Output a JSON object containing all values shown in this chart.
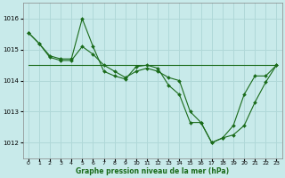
{
  "title": "Graphe pression niveau de la mer (hPa)",
  "background_color": "#c8eaea",
  "grid_color": "#b0d8d8",
  "line_color": "#1a6b1a",
  "marker_color": "#1a6b1a",
  "xlim": [
    -0.5,
    23.5
  ],
  "ylim": [
    1011.5,
    1016.5
  ],
  "yticks": [
    1012,
    1013,
    1014,
    1015,
    1016
  ],
  "xticks": [
    0,
    1,
    2,
    3,
    4,
    5,
    6,
    7,
    8,
    9,
    10,
    11,
    12,
    13,
    14,
    15,
    16,
    17,
    18,
    19,
    20,
    21,
    22,
    23
  ],
  "series1_x": [
    0,
    1,
    2,
    3,
    4,
    5,
    6,
    7,
    8,
    9,
    10,
    11,
    12,
    13,
    14,
    15,
    16,
    17,
    18,
    19,
    20,
    21,
    22,
    23
  ],
  "series1_y": [
    1015.55,
    1015.2,
    1014.8,
    1014.7,
    1014.7,
    1016.0,
    1015.1,
    1014.3,
    1014.15,
    1014.05,
    1014.45,
    1014.5,
    1014.4,
    1013.85,
    1013.55,
    1012.65,
    1012.65,
    1012.0,
    1012.15,
    1012.55,
    1013.55,
    1014.15,
    1014.15,
    1014.5
  ],
  "series2_x": [
    0,
    1,
    2,
    3,
    4,
    5,
    6,
    7,
    8,
    9,
    10,
    11,
    12,
    13,
    14,
    15,
    16,
    17,
    18,
    19,
    20,
    21,
    22,
    23
  ],
  "series2_y": [
    1015.55,
    1015.2,
    1014.75,
    1014.65,
    1014.65,
    1015.1,
    1014.85,
    1014.5,
    1014.3,
    1014.1,
    1014.3,
    1014.4,
    1014.3,
    1014.1,
    1014.0,
    1013.0,
    1012.65,
    1012.0,
    1012.15,
    1012.25,
    1012.55,
    1013.3,
    1013.95,
    1014.5
  ],
  "series3_x": [
    0,
    23
  ],
  "series3_y": [
    1014.5,
    1014.5
  ]
}
